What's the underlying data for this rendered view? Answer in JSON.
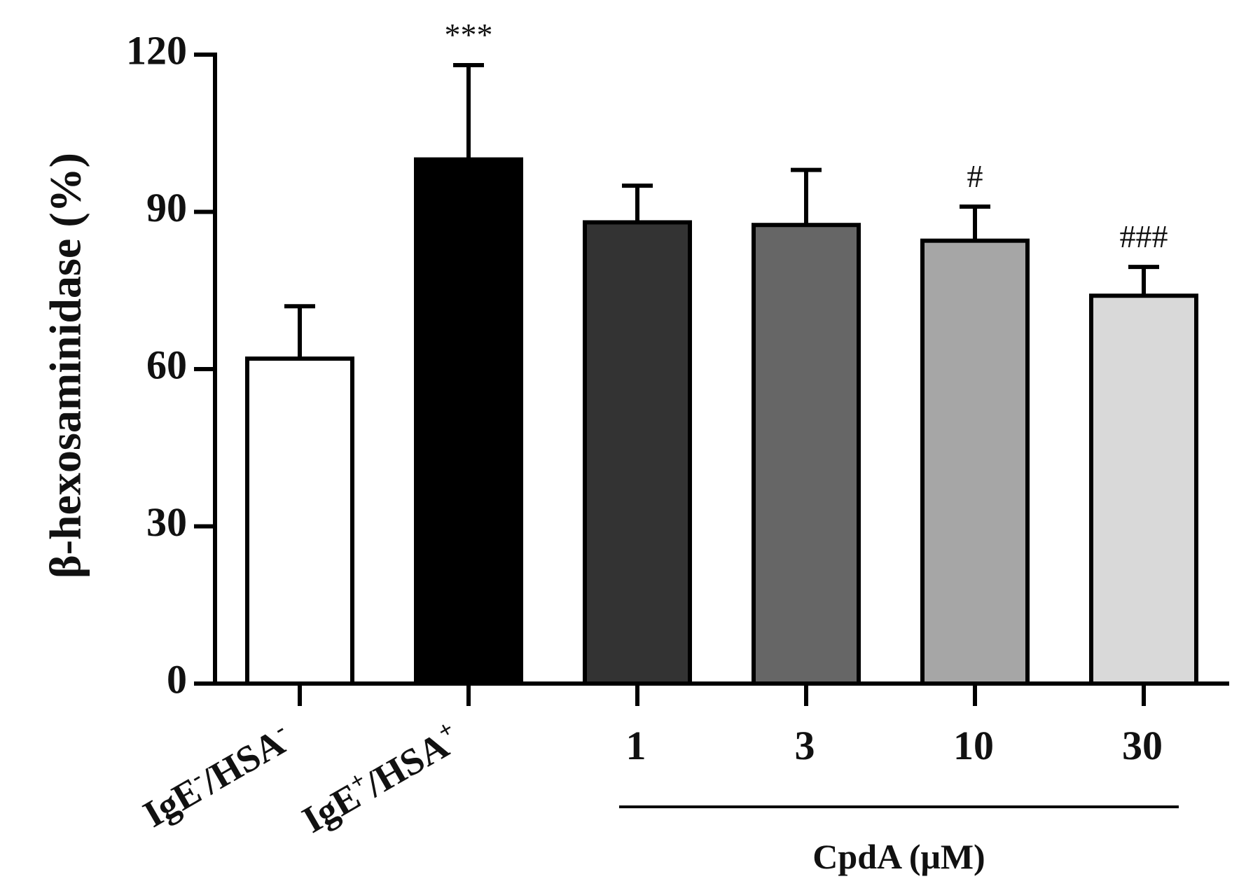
{
  "chart_data": {
    "type": "bar",
    "title": "",
    "ylabel": "β-hexosaminidase (%)",
    "xlabel": "",
    "ylim": [
      0,
      120
    ],
    "yticks": [
      0,
      30,
      60,
      90,
      120
    ],
    "categories": [
      {
        "base": "IgE",
        "sup1": "-",
        "mid": "/HSA",
        "sup2": "-",
        "rotated": true
      },
      {
        "base": "IgE",
        "sup1": "+",
        "mid": "/HSA",
        "sup2": "+",
        "rotated": true
      },
      {
        "text": "1"
      },
      {
        "text": "3"
      },
      {
        "text": "10"
      },
      {
        "text": "30"
      }
    ],
    "values": [
      62,
      100,
      88,
      87.5,
      84.5,
      74
    ],
    "errors": [
      10,
      18,
      7,
      10.5,
      6.5,
      5.5
    ],
    "bar_colors": [
      "#ffffff",
      "#000000",
      "#333333",
      "#666666",
      "#a6a6a6",
      "#d9d9d9"
    ],
    "annotations": [
      "",
      "***",
      "",
      "",
      "#",
      "###"
    ],
    "group_label": "CpdA (μM)",
    "group_span": [
      2,
      5
    ]
  }
}
